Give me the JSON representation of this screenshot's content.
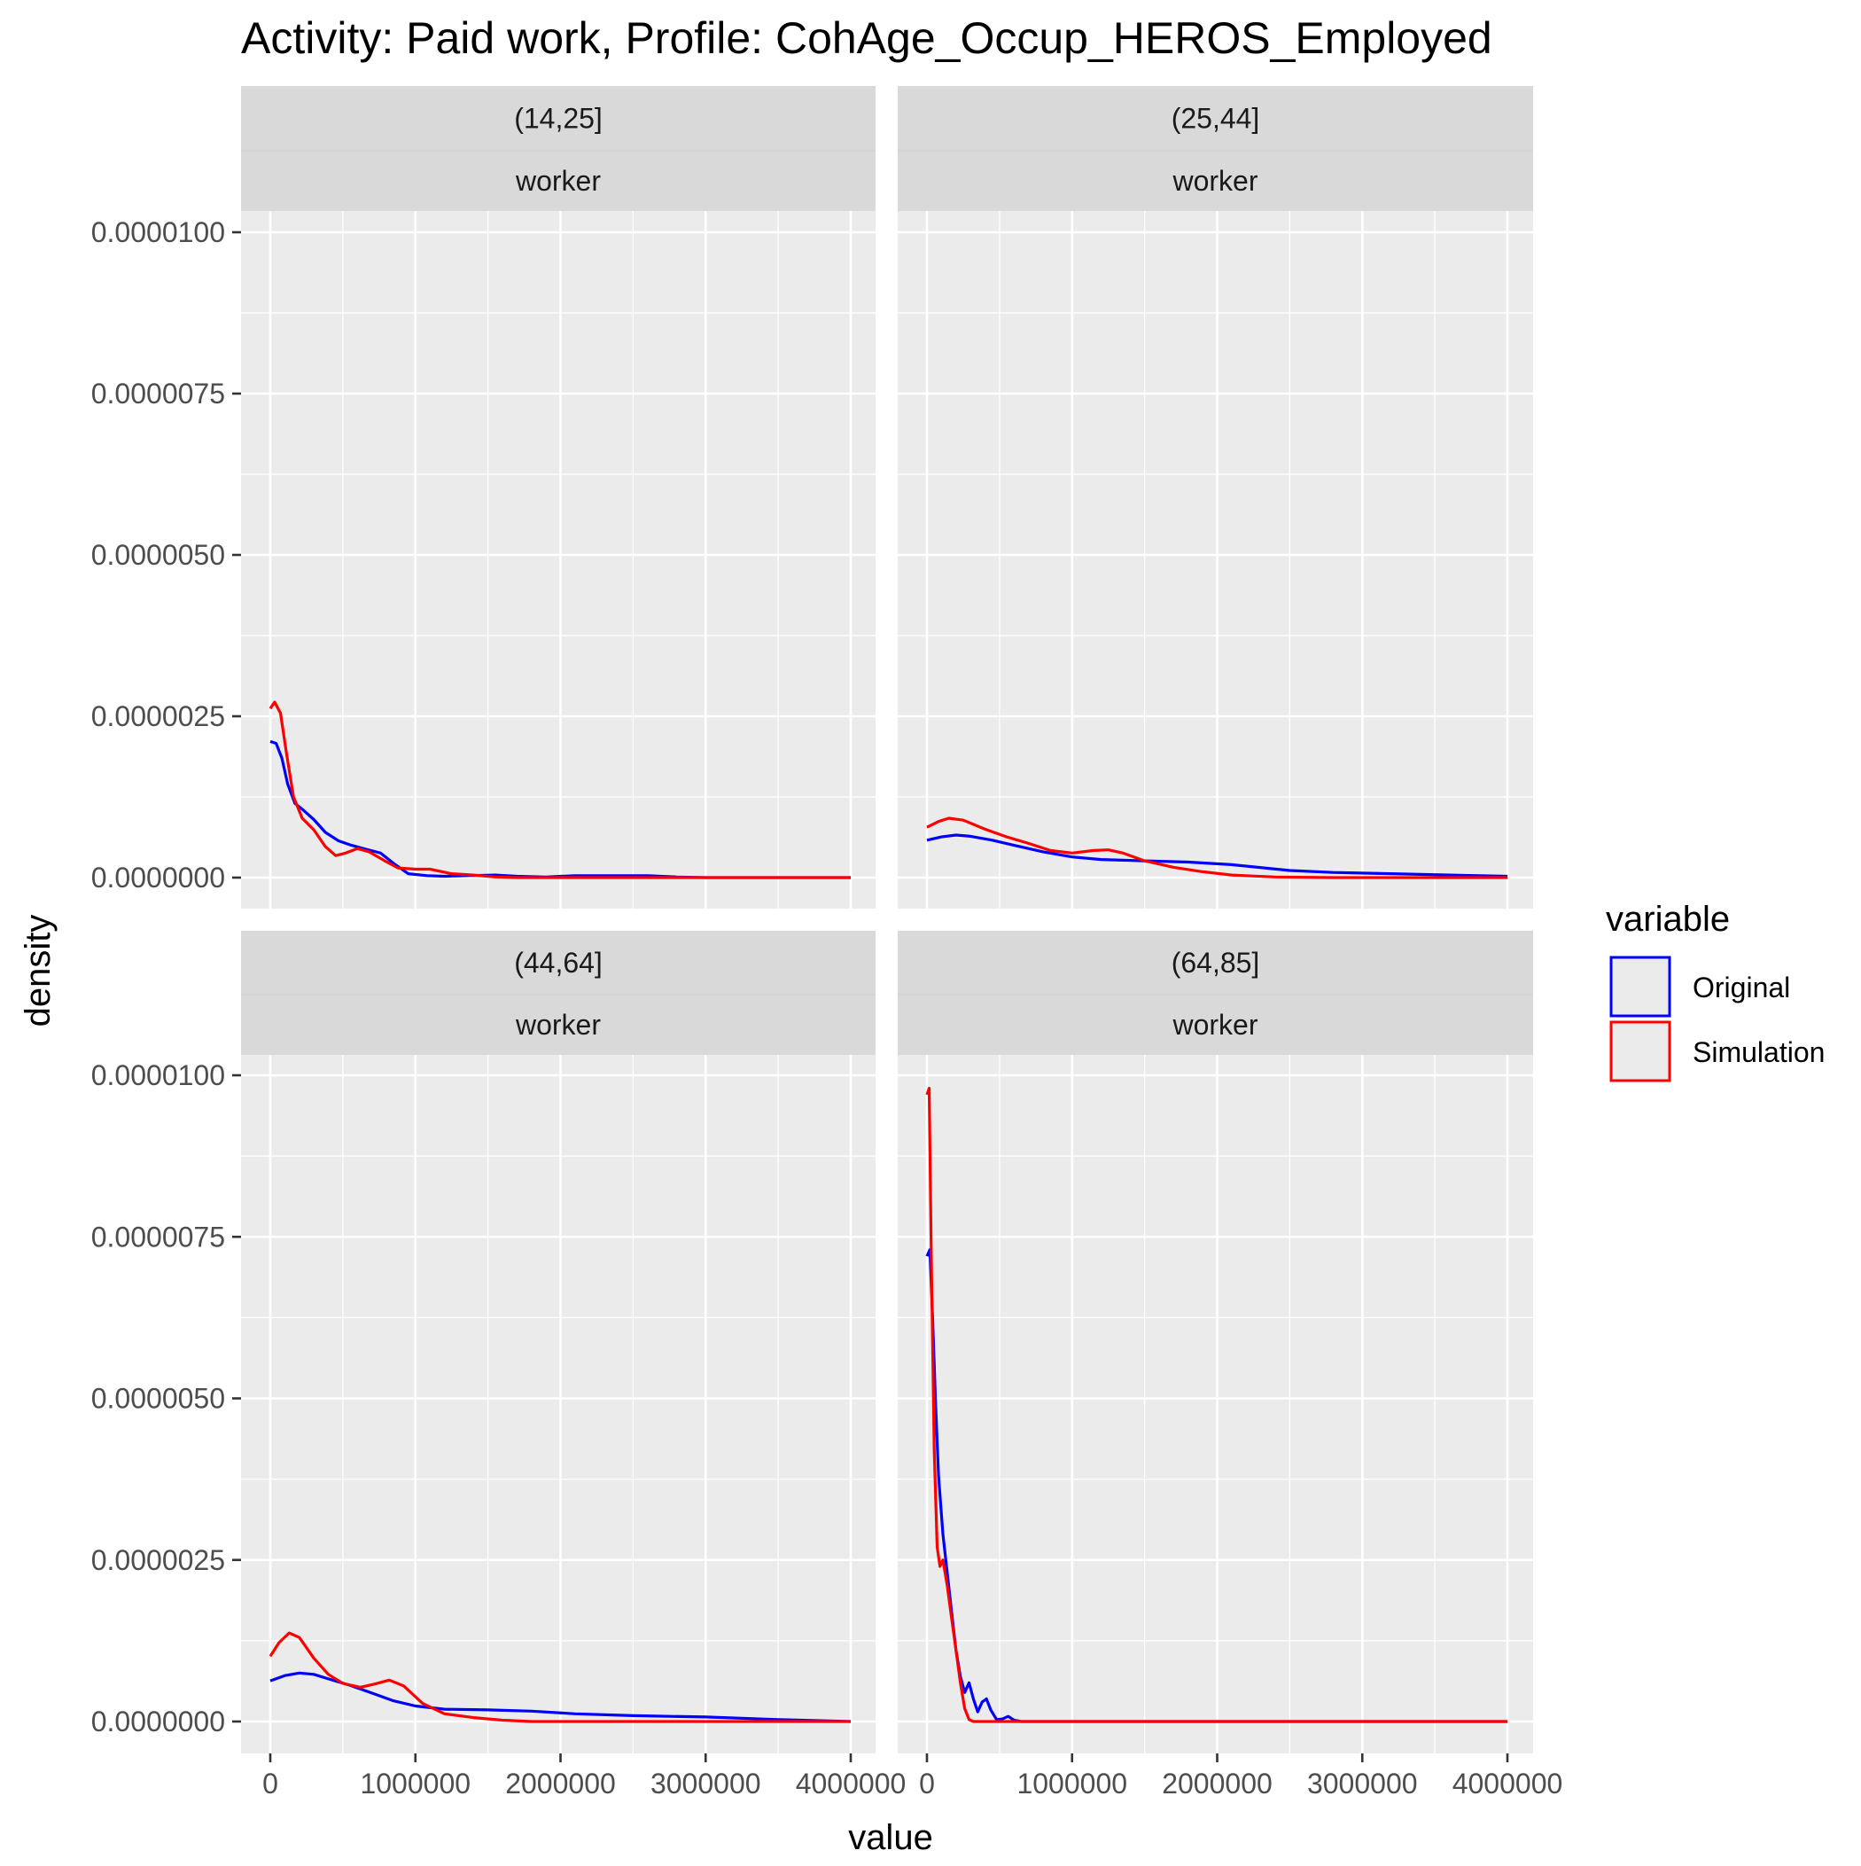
{
  "chart_data": {
    "type": "line",
    "title": "Activity: Paid work, Profile: CohAge_Occup_HEROS_Employed",
    "xlabel": "value",
    "ylabel": "density",
    "xlim": [
      0,
      4000000
    ],
    "ylim": [
      0,
      1e-05
    ],
    "grid": true,
    "x_ticks": [
      0,
      1000000,
      2000000,
      3000000,
      4000000
    ],
    "x_tick_labels": [
      "0",
      "1000000",
      "2000000",
      "3000000",
      "4000000"
    ],
    "y_ticks": [
      0,
      2.5e-06,
      5e-06,
      7.5e-06,
      1e-05
    ],
    "y_tick_labels": [
      "0.0000000",
      "0.0000025",
      "0.0000050",
      "0.0000075",
      "0.0000100"
    ],
    "legend": {
      "title": "variable",
      "position": "right",
      "items": [
        {
          "name": "Original",
          "color": "#0000ff"
        },
        {
          "name": "Simulation",
          "color": "#ff0000"
        }
      ]
    },
    "panels": [
      {
        "strip_top": "(14,25]",
        "strip_bottom": "worker",
        "series": [
          {
            "name": "Original",
            "color": "#0000ff",
            "points": [
              [
                0,
                2.11e-06
              ],
              [
                40000,
                2.08e-06
              ],
              [
                80000,
                1.85e-06
              ],
              [
                120000,
                1.45e-06
              ],
              [
                170000,
                1.15e-06
              ],
              [
                230000,
                1.04e-06
              ],
              [
                300000,
                9e-07
              ],
              [
                380000,
                7e-07
              ],
              [
                470000,
                5.7e-07
              ],
              [
                560000,
                5e-07
              ],
              [
                660000,
                4.4e-07
              ],
              [
                760000,
                3.8e-07
              ],
              [
                850000,
                2.2e-07
              ],
              [
                950000,
                6e-08
              ],
              [
                1080000,
                3e-08
              ],
              [
                1200000,
                2e-08
              ],
              [
                1350000,
                3e-08
              ],
              [
                1550000,
                4e-08
              ],
              [
                1700000,
                2e-08
              ],
              [
                1900000,
                1e-08
              ],
              [
                2100000,
                3e-08
              ],
              [
                2350000,
                3e-08
              ],
              [
                2600000,
                3e-08
              ],
              [
                2800000,
                1e-08
              ],
              [
                3000000,
                0.0
              ],
              [
                3500000,
                0.0
              ],
              [
                4000000,
                0.0
              ]
            ]
          },
          {
            "name": "Simulation",
            "color": "#ff0000",
            "points": [
              [
                0,
                2.62e-06
              ],
              [
                30000,
                2.72e-06
              ],
              [
                70000,
                2.55e-06
              ],
              [
                110000,
                1.95e-06
              ],
              [
                160000,
                1.25e-06
              ],
              [
                220000,
                9.2e-07
              ],
              [
                300000,
                7.4e-07
              ],
              [
                380000,
                4.8e-07
              ],
              [
                450000,
                3.4e-07
              ],
              [
                520000,
                3.8e-07
              ],
              [
                600000,
                4.5e-07
              ],
              [
                680000,
                4e-07
              ],
              [
                780000,
                2.7e-07
              ],
              [
                880000,
                1.5e-07
              ],
              [
                1000000,
                1.3e-07
              ],
              [
                1100000,
                1.3e-07
              ],
              [
                1250000,
                6e-08
              ],
              [
                1400000,
                4e-08
              ],
              [
                1550000,
                1e-08
              ],
              [
                1700000,
                0.0
              ],
              [
                2000000,
                0.0
              ],
              [
                2500000,
                0.0
              ],
              [
                3000000,
                0.0
              ],
              [
                4000000,
                0.0
              ]
            ]
          }
        ]
      },
      {
        "strip_top": "(25,44]",
        "strip_bottom": "worker",
        "series": [
          {
            "name": "Original",
            "color": "#0000ff",
            "points": [
              [
                0,
                5.8e-07
              ],
              [
                100000,
                6.3e-07
              ],
              [
                200000,
                6.6e-07
              ],
              [
                300000,
                6.4e-07
              ],
              [
                450000,
                5.8e-07
              ],
              [
                600000,
                5e-07
              ],
              [
                800000,
                4e-07
              ],
              [
                1000000,
                3.2e-07
              ],
              [
                1200000,
                2.8e-07
              ],
              [
                1500000,
                2.6e-07
              ],
              [
                1800000,
                2.4e-07
              ],
              [
                2100000,
                2e-07
              ],
              [
                2500000,
                1.1e-07
              ],
              [
                2800000,
                8e-08
              ],
              [
                3200000,
                6e-08
              ],
              [
                3600000,
                4e-08
              ],
              [
                4000000,
                2e-08
              ]
            ]
          },
          {
            "name": "Simulation",
            "color": "#ff0000",
            "points": [
              [
                0,
                7.8e-07
              ],
              [
                80000,
                8.7e-07
              ],
              [
                150000,
                9.2e-07
              ],
              [
                250000,
                8.9e-07
              ],
              [
                400000,
                7.5e-07
              ],
              [
                550000,
                6.3e-07
              ],
              [
                700000,
                5.3e-07
              ],
              [
                850000,
                4.2e-07
              ],
              [
                1000000,
                3.8e-07
              ],
              [
                1150000,
                4.2e-07
              ],
              [
                1250000,
                4.3e-07
              ],
              [
                1350000,
                3.8e-07
              ],
              [
                1500000,
                2.6e-07
              ],
              [
                1700000,
                1.6e-07
              ],
              [
                1900000,
                9e-08
              ],
              [
                2100000,
                4e-08
              ],
              [
                2400000,
                1e-08
              ],
              [
                2800000,
                0.0
              ],
              [
                3500000,
                0.0
              ],
              [
                4000000,
                0.0
              ]
            ]
          }
        ]
      },
      {
        "strip_top": "(44,64]",
        "strip_bottom": "worker",
        "series": [
          {
            "name": "Original",
            "color": "#0000ff",
            "points": [
              [
                0,
                6.3e-07
              ],
              [
                100000,
                7.1e-07
              ],
              [
                200000,
                7.5e-07
              ],
              [
                300000,
                7.3e-07
              ],
              [
                400000,
                6.6e-07
              ],
              [
                550000,
                5.6e-07
              ],
              [
                700000,
                4.4e-07
              ],
              [
                850000,
                3.2e-07
              ],
              [
                1000000,
                2.4e-07
              ],
              [
                1200000,
                1.9e-07
              ],
              [
                1500000,
                1.8e-07
              ],
              [
                1800000,
                1.6e-07
              ],
              [
                2100000,
                1.2e-07
              ],
              [
                2500000,
                9e-08
              ],
              [
                3000000,
                7e-08
              ],
              [
                3500000,
                3e-08
              ],
              [
                4000000,
                0.0
              ]
            ]
          },
          {
            "name": "Simulation",
            "color": "#ff0000",
            "points": [
              [
                0,
                1.01e-06
              ],
              [
                60000,
                1.22e-06
              ],
              [
                130000,
                1.37e-06
              ],
              [
                200000,
                1.3e-06
              ],
              [
                300000,
                9.8e-07
              ],
              [
                400000,
                7.3e-07
              ],
              [
                500000,
                5.9e-07
              ],
              [
                620000,
                5.3e-07
              ],
              [
                720000,
                5.8e-07
              ],
              [
                820000,
                6.4e-07
              ],
              [
                920000,
                5.5e-07
              ],
              [
                1050000,
                2.8e-07
              ],
              [
                1200000,
                1.2e-07
              ],
              [
                1400000,
                6e-08
              ],
              [
                1600000,
                2e-08
              ],
              [
                1800000,
                0.0
              ],
              [
                2500000,
                0.0
              ],
              [
                3000000,
                0.0
              ],
              [
                4000000,
                0.0
              ]
            ]
          }
        ]
      },
      {
        "strip_top": "(64,85]",
        "strip_bottom": "worker",
        "series": [
          {
            "name": "Original",
            "color": "#0000ff",
            "points": [
              [
                0,
                7.2e-06
              ],
              [
                20000,
                7.3e-06
              ],
              [
                40000,
                6.2e-06
              ],
              [
                60000,
                4.9e-06
              ],
              [
                80000,
                3.8e-06
              ],
              [
                110000,
                2.9e-06
              ],
              [
                140000,
                2.3e-06
              ],
              [
                170000,
                1.7e-06
              ],
              [
                200000,
                1.1e-06
              ],
              [
                230000,
                7e-07
              ],
              [
                260000,
                4.5e-07
              ],
              [
                290000,
                6e-07
              ],
              [
                320000,
                3.5e-07
              ],
              [
                350000,
                1.5e-07
              ],
              [
                380000,
                3e-07
              ],
              [
                410000,
                3.5e-07
              ],
              [
                440000,
                1.8e-07
              ],
              [
                480000,
                3e-08
              ],
              [
                520000,
                4e-08
              ],
              [
                560000,
                8e-08
              ],
              [
                600000,
                2e-08
              ],
              [
                650000,
                0.0
              ],
              [
                1000000,
                0.0
              ],
              [
                2000000,
                0.0
              ],
              [
                3000000,
                0.0
              ],
              [
                4000000,
                0.0
              ]
            ]
          },
          {
            "name": "Simulation",
            "color": "#ff0000",
            "points": [
              [
                0,
                9.7e-06
              ],
              [
                15000,
                9.8e-06
              ],
              [
                30000,
                7.2e-06
              ],
              [
                50000,
                4.2e-06
              ],
              [
                70000,
                2.7e-06
              ],
              [
                90000,
                2.4e-06
              ],
              [
                110000,
                2.5e-06
              ],
              [
                140000,
                2.1e-06
              ],
              [
                170000,
                1.6e-06
              ],
              [
                200000,
                1.1e-06
              ],
              [
                230000,
                6e-07
              ],
              [
                260000,
                2e-07
              ],
              [
                290000,
                3e-08
              ],
              [
                320000,
                0.0
              ],
              [
                1000000,
                0.0
              ],
              [
                2000000,
                0.0
              ],
              [
                3000000,
                0.0
              ],
              [
                4000000,
                0.0
              ]
            ]
          }
        ]
      }
    ]
  }
}
